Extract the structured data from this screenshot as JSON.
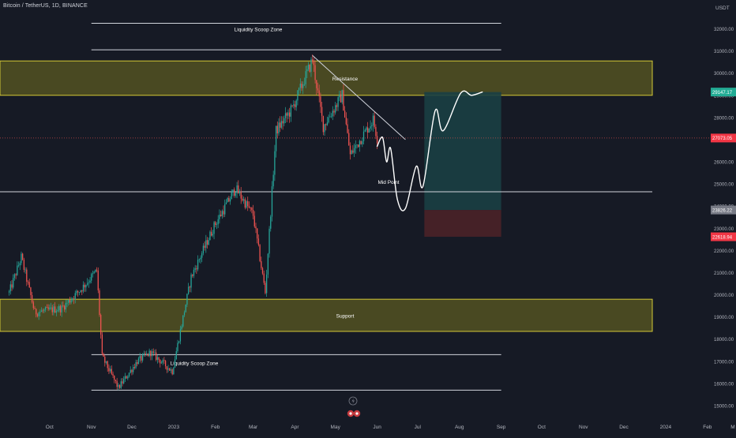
{
  "header": {
    "symbol_line": "Bitcoin / TetherUS, 1D, BINANCE"
  },
  "chart_data": {
    "type": "candlestick",
    "currency": "USDT",
    "y_ticks": [
      15000,
      16000,
      17000,
      18000,
      19000,
      20000,
      21000,
      22000,
      23000,
      24000,
      25000,
      26000,
      27000,
      28000,
      29000,
      30000,
      31000,
      32000
    ],
    "ylim": [
      14700,
      33200
    ],
    "x_ticks": [
      "Oct",
      "Nov",
      "Dec",
      "2023",
      "Feb",
      "Mar",
      "Apr",
      "May",
      "Jun",
      "Jul",
      "Aug",
      "Sep",
      "Oct",
      "Nov",
      "Dec",
      "2024",
      "Feb",
      "M"
    ],
    "anchor_points": [
      {
        "date": "2022-09-01",
        "price": 20100
      },
      {
        "date": "2022-09-10",
        "price": 21700
      },
      {
        "date": "2022-09-20",
        "price": 19200
      },
      {
        "date": "2022-10-10",
        "price": 19400
      },
      {
        "date": "2022-10-25",
        "price": 20300
      },
      {
        "date": "2022-11-05",
        "price": 21100
      },
      {
        "date": "2022-11-09",
        "price": 17200
      },
      {
        "date": "2022-11-21",
        "price": 15800
      },
      {
        "date": "2022-12-05",
        "price": 17000
      },
      {
        "date": "2022-12-15",
        "price": 17400
      },
      {
        "date": "2022-12-31",
        "price": 16550
      },
      {
        "date": "2023-01-14",
        "price": 20800
      },
      {
        "date": "2023-01-31",
        "price": 23100
      },
      {
        "date": "2023-02-16",
        "price": 24800
      },
      {
        "date": "2023-03-01",
        "price": 23600
      },
      {
        "date": "2023-03-10",
        "price": 20100
      },
      {
        "date": "2023-03-18",
        "price": 27400
      },
      {
        "date": "2023-03-30",
        "price": 28400
      },
      {
        "date": "2023-04-14",
        "price": 30600
      },
      {
        "date": "2023-04-22",
        "price": 27600
      },
      {
        "date": "2023-05-06",
        "price": 29000
      },
      {
        "date": "2023-05-12",
        "price": 26300
      },
      {
        "date": "2023-05-29",
        "price": 27900
      },
      {
        "date": "2023-06-01",
        "price": 27073
      }
    ],
    "zones": [
      {
        "label": "Resistance",
        "low": 29000,
        "high": 30550
      },
      {
        "label": "Support",
        "low": 18350,
        "high": 19800
      }
    ],
    "lines": [
      {
        "label": "Liquidity Scoop Zone",
        "upper": 32250,
        "lower": 31050,
        "start": "2022-11-01",
        "end": "2023-09-01"
      },
      {
        "label": "Liquidity Scoop Zone",
        "upper": 17300,
        "lower": 15700,
        "start": "2022-11-01",
        "end": "2023-09-01"
      },
      {
        "label": "Mid Point",
        "price": 24650
      }
    ],
    "trendline": {
      "from": {
        "date": "2023-04-14",
        "price": 30800
      },
      "to": {
        "date": "2023-06-22",
        "price": 27000
      }
    },
    "projection_path": [
      {
        "date": "2023-06-01",
        "price": 26700
      },
      {
        "date": "2023-06-05",
        "price": 27100
      },
      {
        "date": "2023-06-08",
        "price": 26000
      },
      {
        "date": "2023-06-11",
        "price": 26600
      },
      {
        "date": "2023-06-16",
        "price": 24300
      },
      {
        "date": "2023-06-22",
        "price": 23900
      },
      {
        "date": "2023-06-30",
        "price": 25800
      },
      {
        "date": "2023-07-05",
        "price": 24900
      },
      {
        "date": "2023-07-14",
        "price": 28300
      },
      {
        "date": "2023-07-20",
        "price": 27400
      },
      {
        "date": "2023-08-02",
        "price": 29100
      },
      {
        "date": "2023-08-10",
        "price": 29000
      },
      {
        "date": "2023-08-18",
        "price": 29150
      }
    ],
    "position": {
      "start": "2023-07-06",
      "end": "2023-09-01",
      "entry": 23826.22,
      "target": 29147.17,
      "stop": 22618.94,
      "profit_color": "#1a3f44",
      "loss_color": "#4a2228"
    },
    "labels": [
      {
        "text": "29147.17",
        "price": 29147.17,
        "color": "#22ab94"
      },
      {
        "text": "27073.05",
        "price": 27073.05,
        "color": "#f23645"
      },
      {
        "text": "23826.22",
        "price": 23826.22,
        "color": "#787b86"
      },
      {
        "text": "22618.94",
        "price": 22618.94,
        "color": "#f23645"
      }
    ],
    "current_price": 27073.05,
    "colors": {
      "up": "#26a69a",
      "down": "#ef5350",
      "background": "#161a25",
      "zone_fill": "#5b5a22",
      "zone_border": "#d4c936",
      "line": "#d1d4dc"
    }
  }
}
